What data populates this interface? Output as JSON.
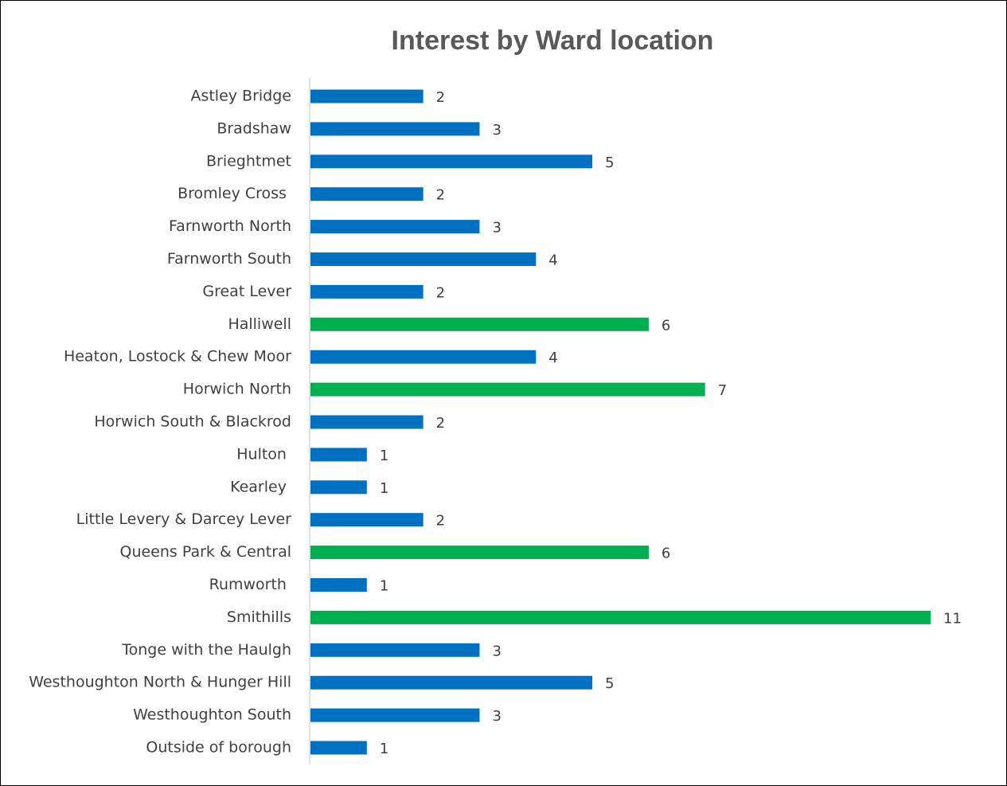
{
  "chart_data": {
    "type": "barh",
    "title": "Interest by Ward location",
    "categories": [
      "Astley Bridge",
      "Bradshaw",
      "Brieghtmet",
      "Bromley Cross ",
      "Farnworth North",
      "Farnworth South",
      "Great Lever",
      "Halliwell",
      "Heaton, Lostock & Chew Moor",
      "Horwich North",
      "Horwich South & Blackrod",
      "Hulton ",
      "Kearley ",
      "Little Levery & Darcey Lever",
      "Queens Park & Central",
      "Rumworth ",
      "Smithills",
      "Tonge with the Haulgh",
      "Westhoughton North & Hunger Hill",
      "Westhoughton South",
      "Outside of borough"
    ],
    "values": [
      2,
      3,
      5,
      2,
      3,
      4,
      2,
      6,
      4,
      7,
      2,
      1,
      1,
      2,
      6,
      1,
      11,
      3,
      5,
      3,
      1
    ],
    "colors": [
      "#0070c0",
      "#0070c0",
      "#0070c0",
      "#0070c0",
      "#0070c0",
      "#0070c0",
      "#0070c0",
      "#00b050",
      "#0070c0",
      "#00b050",
      "#0070c0",
      "#0070c0",
      "#0070c0",
      "#0070c0",
      "#00b050",
      "#0070c0",
      "#00b050",
      "#0070c0",
      "#0070c0",
      "#0070c0",
      "#0070c0"
    ],
    "data_labels": true
  }
}
